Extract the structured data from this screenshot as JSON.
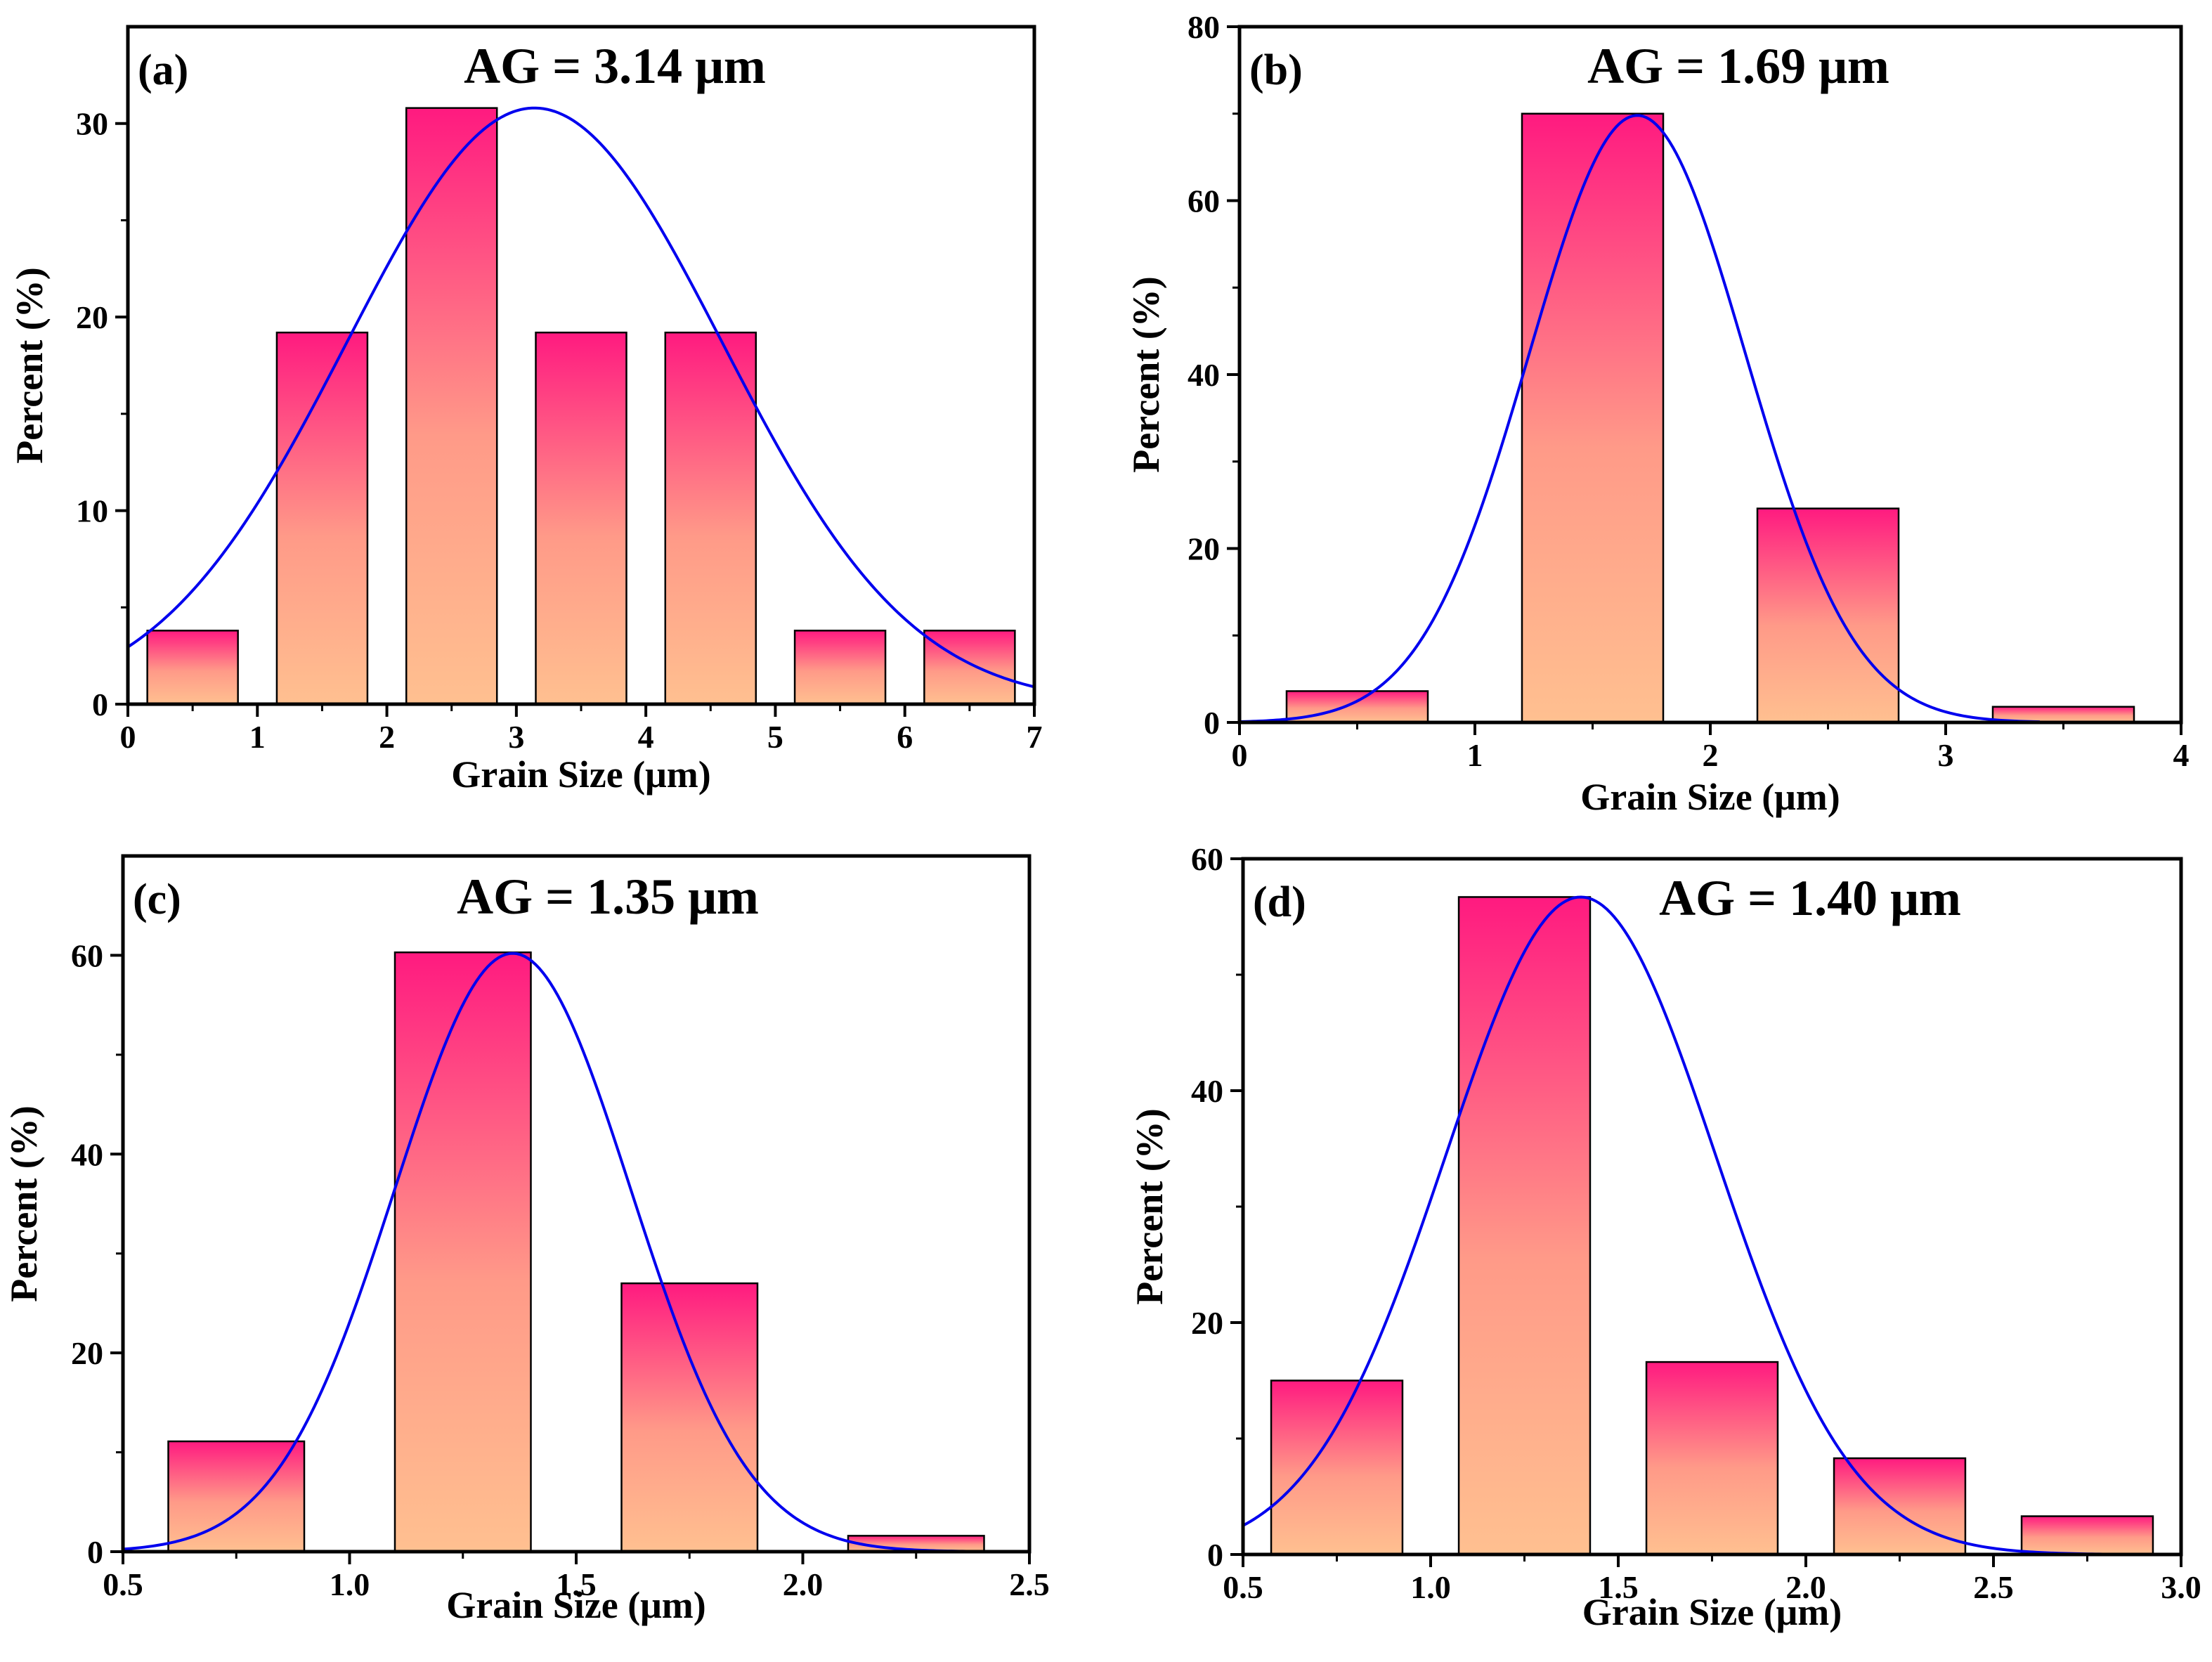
{
  "colors": {
    "bar_top": "#ff1a80",
    "bar_bottom": "#ffc090",
    "fit_curve": "#0000ee",
    "frame": "#000000"
  },
  "chart_data": [
    {
      "type": "bar",
      "panel_label": "(a)",
      "title": "AG = 3.14 μm",
      "xlabel": "Grain Size (μm)",
      "ylabel": "Percent (%)",
      "xlim": [
        0,
        7
      ],
      "ylim": [
        0,
        35
      ],
      "xticks": [
        0,
        1,
        2,
        3,
        4,
        5,
        6,
        7
      ],
      "xtick_labels": [
        "0",
        "1",
        "2",
        "3",
        "4",
        "5",
        "6",
        "7"
      ],
      "yticks": [
        0,
        10,
        20,
        30
      ],
      "ytick_labels": [
        "0",
        "10",
        "20",
        "30"
      ],
      "bars": [
        {
          "x0": 0.15,
          "x1": 0.85,
          "value": 3.8
        },
        {
          "x0": 1.15,
          "x1": 1.85,
          "value": 19.2
        },
        {
          "x0": 2.15,
          "x1": 2.85,
          "value": 30.8
        },
        {
          "x0": 3.15,
          "x1": 3.85,
          "value": 19.2
        },
        {
          "x0": 4.15,
          "x1": 4.85,
          "value": 19.2
        },
        {
          "x0": 5.15,
          "x1": 5.85,
          "value": 3.8
        },
        {
          "x0": 6.15,
          "x1": 6.85,
          "value": 3.8
        }
      ],
      "fit": {
        "type": "gaussian",
        "mean": 3.14,
        "sd": 1.45,
        "peak": 30.8,
        "x_range": [
          0,
          7
        ]
      }
    },
    {
      "type": "bar",
      "panel_label": "(b)",
      "title": "AG = 1.69 μm",
      "xlabel": "Grain Size (μm)",
      "ylabel": "Percent (%)",
      "xlim": [
        0,
        4
      ],
      "ylim": [
        0,
        80
      ],
      "xticks": [
        0,
        1,
        2,
        3,
        4
      ],
      "xtick_labels": [
        "0",
        "1",
        "2",
        "3",
        "4"
      ],
      "yticks": [
        0,
        20,
        40,
        60,
        80
      ],
      "ytick_labels": [
        "0",
        "20",
        "40",
        "60",
        "80"
      ],
      "bars": [
        {
          "x0": 0.2,
          "x1": 0.8,
          "value": 3.6
        },
        {
          "x0": 1.2,
          "x1": 1.8,
          "value": 70.0
        },
        {
          "x0": 2.2,
          "x1": 2.8,
          "value": 24.6
        },
        {
          "x0": 3.2,
          "x1": 3.8,
          "value": 1.8
        }
      ],
      "fit": {
        "type": "gaussian",
        "mean": 1.69,
        "sd": 0.46,
        "peak": 69.8,
        "x_range": [
          0,
          3.4
        ]
      }
    },
    {
      "type": "bar",
      "panel_label": "(c)",
      "title": "AG = 1.35 μm",
      "xlabel": "Grain Size (μm)",
      "ylabel": "Percent (%)",
      "xlim": [
        0.5,
        2.5
      ],
      "ylim": [
        0,
        70
      ],
      "xticks": [
        0.5,
        1.0,
        1.5,
        2.0,
        2.5
      ],
      "xtick_labels": [
        "0.5",
        "1.0",
        "1.5",
        "2.0",
        "2.5"
      ],
      "yticks": [
        0,
        20,
        40,
        60
      ],
      "ytick_labels": [
        "0",
        "20",
        "40",
        "60"
      ],
      "bars": [
        {
          "x0": 0.6,
          "x1": 0.9,
          "value": 11.1
        },
        {
          "x0": 1.1,
          "x1": 1.4,
          "value": 60.3
        },
        {
          "x0": 1.6,
          "x1": 1.9,
          "value": 27.0
        },
        {
          "x0": 2.1,
          "x1": 2.4,
          "value": 1.6
        }
      ],
      "fit": {
        "type": "gaussian",
        "mean": 1.36,
        "sd": 0.26,
        "peak": 60.2,
        "x_range": [
          0.5,
          2.45
        ]
      }
    },
    {
      "type": "bar",
      "panel_label": "(d)",
      "title": "AG = 1.40 μm",
      "xlabel": "Grain Size (μm)",
      "ylabel": "Percent (%)",
      "xlim": [
        0.5,
        3.0
      ],
      "ylim": [
        0,
        60
      ],
      "xticks": [
        0.5,
        1.0,
        1.5,
        2.0,
        2.5,
        3.0
      ],
      "xtick_labels": [
        "0.5",
        "1.0",
        "1.5",
        "2.0",
        "2.5",
        "3.0"
      ],
      "yticks": [
        0,
        20,
        40,
        60
      ],
      "ytick_labels": [
        "0",
        "20",
        "40",
        "60"
      ],
      "bars": [
        {
          "x0": 0.575,
          "x1": 0.925,
          "value": 15.0
        },
        {
          "x0": 1.075,
          "x1": 1.425,
          "value": 56.7
        },
        {
          "x0": 1.575,
          "x1": 1.925,
          "value": 16.6
        },
        {
          "x0": 2.075,
          "x1": 2.425,
          "value": 8.3
        },
        {
          "x0": 2.575,
          "x1": 2.925,
          "value": 3.3
        }
      ],
      "fit": {
        "type": "gaussian",
        "mean": 1.4,
        "sd": 0.36,
        "peak": 56.7,
        "x_range": [
          0.5,
          2.85
        ]
      }
    }
  ]
}
